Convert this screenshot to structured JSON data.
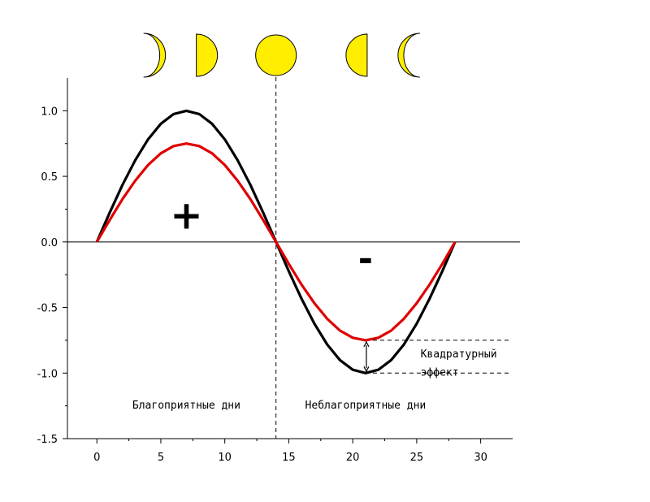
{
  "chart_data": {
    "type": "line",
    "title": "",
    "xlabel": "",
    "ylabel": "",
    "xlim": [
      -2.3,
      32.5
    ],
    "ylim": [
      -1.5,
      1.25
    ],
    "x_ticks": [
      0,
      5,
      10,
      15,
      20,
      25,
      30
    ],
    "x_tick_labels": [
      "0",
      "5",
      "10",
      "15",
      "20",
      "25",
      "30"
    ],
    "y_ticks": [
      1.0,
      0.5,
      0.0,
      -0.5,
      -1.0,
      -1.5
    ],
    "y_tick_labels": [
      "1.0",
      "0.5",
      "0.0",
      "-0.5",
      "-1.0",
      "-1.5"
    ],
    "grid": false,
    "legend": "none",
    "series": [
      {
        "color": "#000000",
        "x": [
          0,
          1,
          2,
          3,
          4,
          5,
          6,
          7,
          8,
          9,
          10,
          11,
          12,
          13,
          14,
          15,
          16,
          17,
          18,
          19,
          20,
          21,
          22,
          23,
          24,
          25,
          26,
          27,
          28
        ],
        "values": [
          0.0,
          0.223,
          0.434,
          0.623,
          0.782,
          0.901,
          0.975,
          1.0,
          0.975,
          0.901,
          0.782,
          0.623,
          0.434,
          0.223,
          0.0,
          -0.223,
          -0.434,
          -0.623,
          -0.782,
          -0.901,
          -0.975,
          -1.0,
          -0.975,
          -0.901,
          -0.782,
          -0.623,
          -0.434,
          -0.223,
          0.0
        ]
      },
      {
        "color": "#e00000",
        "x": [
          0,
          1,
          2,
          3,
          4,
          5,
          6,
          7,
          8,
          9,
          10,
          11,
          12,
          13,
          14,
          15,
          16,
          17,
          18,
          19,
          20,
          21,
          22,
          23,
          24,
          25,
          26,
          27,
          28
        ],
        "values": [
          0.0,
          0.167,
          0.326,
          0.467,
          0.586,
          0.676,
          0.731,
          0.75,
          0.731,
          0.676,
          0.586,
          0.467,
          0.326,
          0.167,
          0.0,
          -0.167,
          -0.326,
          -0.467,
          -0.586,
          -0.676,
          -0.731,
          -0.75,
          -0.731,
          -0.676,
          -0.586,
          -0.467,
          -0.326,
          -0.167,
          0.0
        ]
      }
    ],
    "reference_lines": [
      {
        "axis": "y",
        "value": 0.0,
        "style": "solid"
      },
      {
        "axis": "x",
        "value": 14,
        "style": "dashed"
      },
      {
        "axis": "y",
        "value": -0.75,
        "style": "dashed",
        "from_x": 21,
        "to_x": 32
      },
      {
        "axis": "y",
        "value": -1.0,
        "style": "dashed",
        "from_x": 21,
        "to_x": 32
      }
    ],
    "annotations": {
      "plus_sign": "+",
      "minus_sign": "-",
      "favorable_days": "Благоприятные дни",
      "unfavorable_days": "Неблагоприятные дни",
      "quadrature_line1": "Квадратурный",
      "quadrature_line2": "эффект",
      "quadrature_arrow": {
        "x": 21,
        "from": -0.75,
        "to": -1.0
      }
    },
    "moon_phases": {
      "color": "#ffee00",
      "outline": "#000000",
      "phases": [
        {
          "name": "waxing-crescent",
          "day": 3.9
        },
        {
          "name": "first-quarter",
          "day": 7.9
        },
        {
          "name": "full-moon",
          "day": 14.0
        },
        {
          "name": "last-quarter",
          "day": 21.0
        },
        {
          "name": "waning-crescent",
          "day": 25.0
        }
      ]
    }
  }
}
